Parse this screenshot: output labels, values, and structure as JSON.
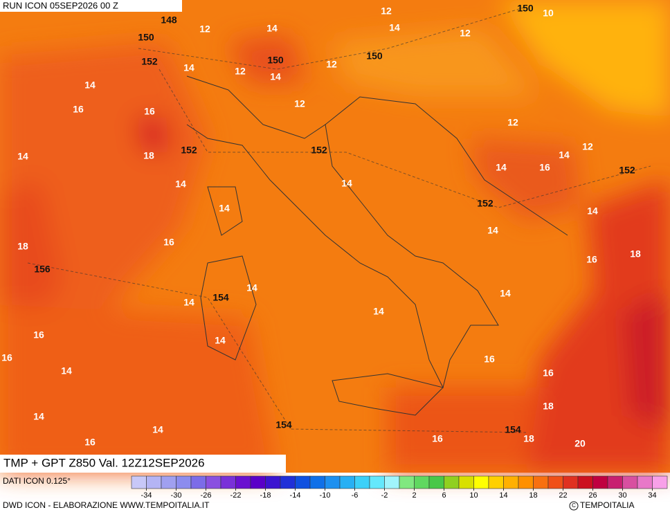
{
  "header": {
    "run": "RUN ICON 05SEP2026 00 Z"
  },
  "title": "TMP + GPT Z850 Val. 12Z12SEP2026",
  "footer": {
    "source": "DATI ICON 0.125°",
    "credit": "DWD ICON - ELABORAZIONE WWW.TEMPOITALIA.IT",
    "logo": "TEMPOITALIA"
  },
  "colorbar": {
    "clim": [
      -36,
      36
    ],
    "ticks": [
      -34,
      -30,
      -26,
      -22,
      -18,
      -14,
      -10,
      -6,
      -2,
      2,
      6,
      10,
      14,
      18,
      22,
      26,
      30,
      34
    ],
    "colors": [
      "#c8c8f8",
      "#b4b4f4",
      "#a0a0f0",
      "#8c8cee",
      "#7c6ce8",
      "#8a50e0",
      "#7a30d8",
      "#6a10d0",
      "#5a00c8",
      "#3c14d0",
      "#2030d8",
      "#1050e0",
      "#1070e8",
      "#1e90f0",
      "#28b0f4",
      "#3cd0f8",
      "#64e8fc",
      "#a0f4fc",
      "#80e880",
      "#60d860",
      "#48c848",
      "#90d020",
      "#d8e000",
      "#ffff00",
      "#ffd000",
      "#ffb000",
      "#ff9000",
      "#f87010",
      "#f05018",
      "#e03020",
      "#cc1020",
      "#c00040",
      "#c82070",
      "#d850a0",
      "#e878c8",
      "#f8a0e8"
    ]
  },
  "map": {
    "temperature_labels": [
      12,
      10,
      12,
      14,
      14,
      12,
      14,
      12,
      14,
      12,
      14,
      12,
      16,
      16,
      12,
      14,
      18,
      12,
      14,
      14,
      16,
      14,
      14,
      14,
      14,
      14,
      16,
      18,
      16,
      18,
      14,
      14,
      14,
      14,
      16,
      14,
      16,
      16,
      14,
      16,
      18,
      14,
      14,
      16,
      16,
      18,
      20
    ],
    "geopotential_labels": [
      148,
      150,
      150,
      150,
      150,
      152,
      152,
      152,
      152,
      152,
      156,
      154,
      154,
      154
    ]
  }
}
